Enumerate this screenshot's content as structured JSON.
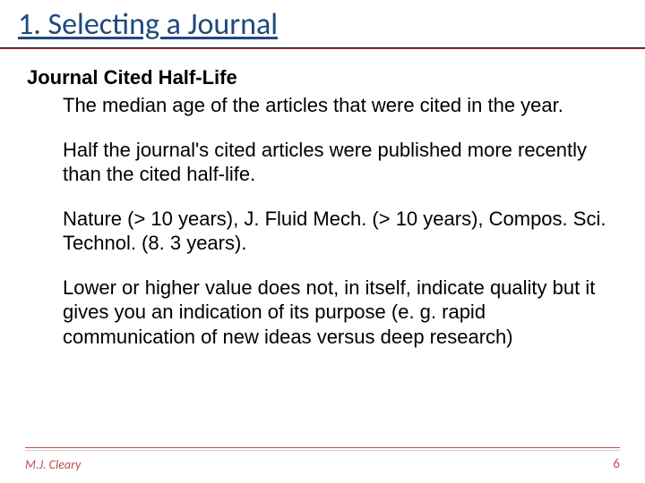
{
  "slide": {
    "title": "1. Selecting a Journal",
    "subhead": "Journal Cited Half-Life",
    "body": [
      "The median age of the articles that were cited in the year.",
      "Half the journal's cited articles were published more recently than the cited half-life.",
      "Nature (> 10 years), J. Fluid Mech. (> 10 years), Compos. Sci. Technol. (8. 3 years).",
      "Lower or higher value does not, in itself, indicate quality but it gives you an indication of its purpose (e. g. rapid communication of new ideas versus deep research)"
    ]
  },
  "footer": {
    "author": "M.J. Cleary",
    "page_number": "6"
  },
  "colors": {
    "title_color": "#1f497d",
    "accent_color": "#c0504d",
    "text_color": "#000000",
    "background": "#ffffff"
  },
  "typography": {
    "title_fontsize_pt": 26,
    "body_fontsize_pt": 17,
    "footer_fontsize_pt": 11
  }
}
